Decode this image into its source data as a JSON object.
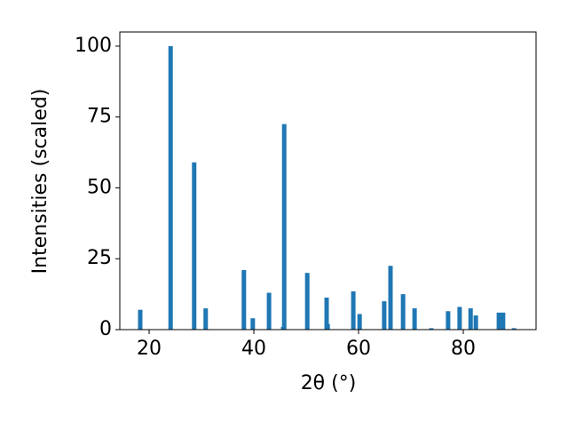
{
  "chart_data": {
    "type": "bar",
    "x_label": "2θ (°)",
    "y_label": "Intensities (scaled)",
    "color": "#1f77b4",
    "x": [
      18.3,
      24.1,
      28.6,
      30.8,
      38.1,
      39.8,
      42.9,
      45.6,
      45.8,
      50.2,
      53.9,
      54.1,
      59.0,
      60.2,
      64.9,
      66.1,
      68.5,
      70.7,
      73.9,
      77.1,
      79.3,
      81.4,
      82.4,
      86.8,
      87.6,
      89.7
    ],
    "values": [
      7,
      100,
      59,
      7.5,
      21,
      4,
      13,
      1,
      72.5,
      20,
      11.3,
      2,
      13.5,
      5.5,
      10,
      22.5,
      12.5,
      7.5,
      0.5,
      6.5,
      8,
      7.5,
      5,
      6,
      6,
      0.5
    ],
    "xlim": [
      14.4,
      93.9
    ],
    "ylim": [
      0,
      105
    ],
    "xticks": [
      20,
      40,
      60,
      80
    ],
    "yticks": [
      0,
      25,
      50,
      75,
      100
    ]
  }
}
